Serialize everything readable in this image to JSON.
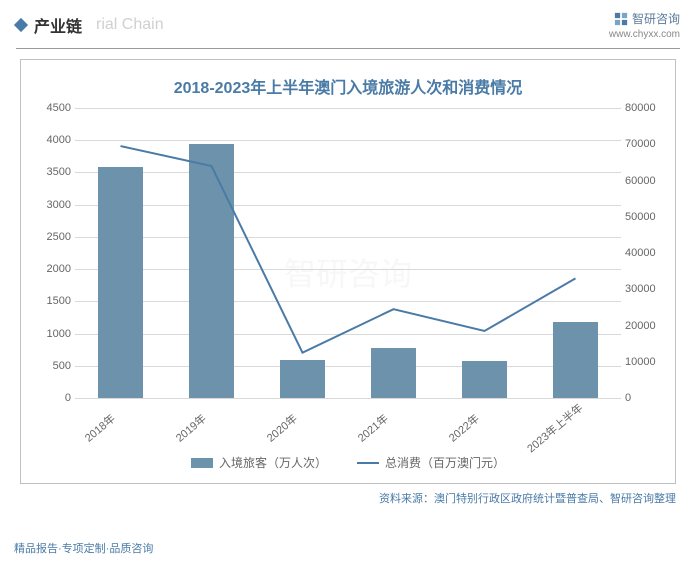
{
  "header": {
    "section_title": "产业链",
    "section_subtitle": "rial Chain",
    "brand_name": "智研咨询",
    "brand_url": "www.chyxx.com"
  },
  "chart": {
    "type": "bar+line",
    "title": "2018-2023年上半年澳门入境旅游人次和消费情况",
    "categories": [
      "2018年",
      "2019年",
      "2020年",
      "2021年",
      "2022年",
      "2023年上半年"
    ],
    "bar_series": {
      "label": "入境旅客（万人次）",
      "values": [
        3580,
        3940,
        590,
        770,
        570,
        1180
      ],
      "color": "#6d93ac"
    },
    "line_series": {
      "label": "总消费（百万澳门元）",
      "values": [
        69500,
        64000,
        12500,
        24500,
        18500,
        33000
      ],
      "color": "#4a7ba6"
    },
    "y_left": {
      "min": 0,
      "max": 4500,
      "step": 500
    },
    "y_right": {
      "min": 0,
      "max": 80000,
      "step": 10000
    },
    "grid_color": "#d9d9d9",
    "background_color": "#ffffff",
    "tick_fontsize": 11,
    "title_fontsize": 16,
    "bar_width": 0.5,
    "line_width": 2
  },
  "source": "资料来源：澳门特别行政区政府统计暨普查局、智研咨询整理",
  "footer": "精品报告·专项定制·品质咨询"
}
